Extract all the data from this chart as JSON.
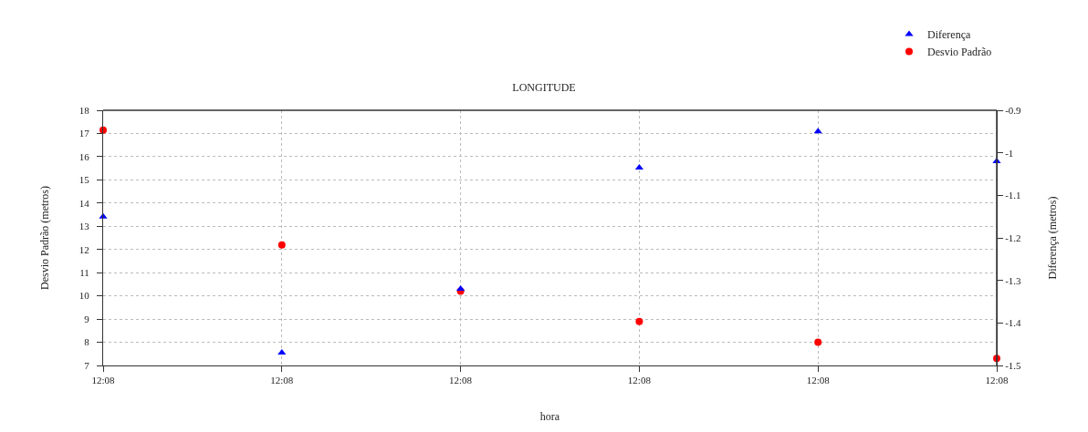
{
  "chart_data": {
    "type": "scatter",
    "title": "LONGITUDE",
    "xlabel": "hora",
    "ylabel": "Desvio Padrão (metros)",
    "y2label": "Diferença (metros)",
    "categories": [
      "12:08",
      "12:08",
      "12:08",
      "12:08",
      "12:08",
      "12:08"
    ],
    "series": [
      {
        "name": "Diferença",
        "color": "#0000ff",
        "marker": "triangle",
        "axis": "y2",
        "values": [
          -1.15,
          -1.47,
          -1.32,
          -1.035,
          -0.95,
          -1.02
        ]
      },
      {
        "name": "Desvio Padrão",
        "color": "#ff0000",
        "marker": "circle",
        "values": [
          17.15,
          12.2,
          10.2,
          8.9,
          8.0,
          7.3
        ]
      }
    ],
    "ylim": [
      7,
      18
    ],
    "yticks": [
      7,
      8,
      9,
      10,
      11,
      12,
      13,
      14,
      15,
      16,
      17,
      18
    ],
    "y2lim": [
      -1.5,
      -0.9
    ],
    "y2ticks": [
      -1.5,
      -1.4,
      -1.3,
      -1.2,
      -1.1,
      -1,
      -0.9
    ],
    "grid": true,
    "legend": "top right"
  }
}
